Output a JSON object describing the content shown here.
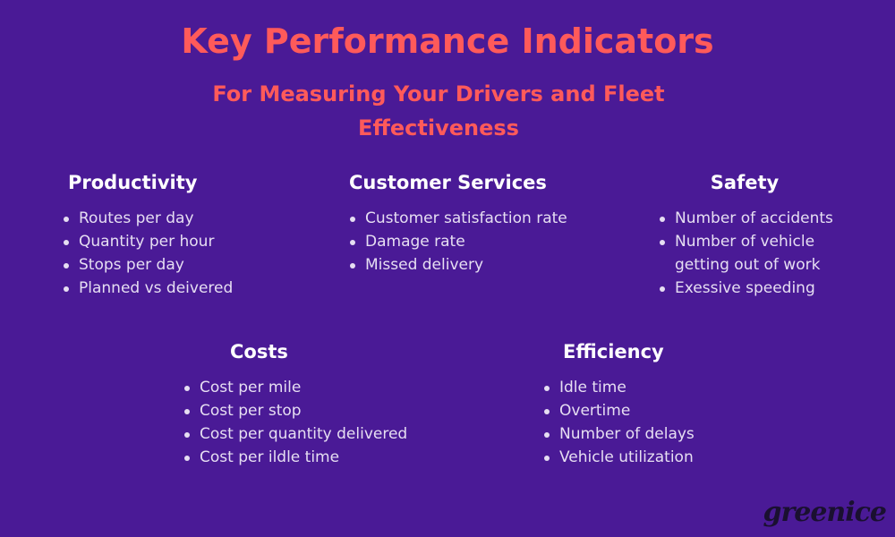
{
  "title": "Key Performance Indicators",
  "subtitle": "For Measuring Your Drivers and Fleet Effectiveness",
  "sections": {
    "productivity": {
      "heading": "Productivity",
      "items": [
        "Routes per day",
        "Quantity per hour",
        "Stops per day",
        "Planned vs deivered"
      ]
    },
    "customer_services": {
      "heading": "Customer Services",
      "items": [
        "Customer satisfaction rate",
        "Damage rate",
        "Missed delivery"
      ]
    },
    "safety": {
      "heading": "Safety",
      "items": [
        "Number of accidents",
        "Number of vehicle getting out of work",
        "Exessive speeding"
      ]
    },
    "costs": {
      "heading": "Costs",
      "items": [
        "Cost per mile",
        "Cost per stop",
        "Cost per quantity delivered",
        "Cost per ildle time"
      ]
    },
    "efficiency": {
      "heading": "Efficiency",
      "items": [
        "Idle time",
        "Overtime",
        "Number of delays",
        "Vehicle utilization"
      ]
    }
  },
  "logo": "greenice",
  "colors": {
    "background": "#4a1a96",
    "accent": "#ff5a5a",
    "heading": "#ffffff",
    "text": "#e6def2"
  }
}
